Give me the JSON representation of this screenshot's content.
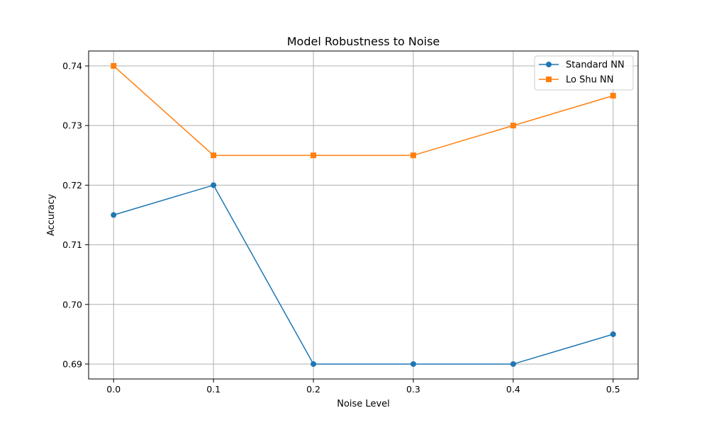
{
  "chart_data": {
    "type": "line",
    "title": "Model Robustness to Noise",
    "xlabel": "Noise Level",
    "ylabel": "Accuracy",
    "x": [
      0.0,
      0.1,
      0.2,
      0.3,
      0.4,
      0.5
    ],
    "xlim": [
      -0.025,
      0.525
    ],
    "ylim": [
      0.6875,
      0.7425
    ],
    "xticks": [
      "0.0",
      "0.1",
      "0.2",
      "0.3",
      "0.4",
      "0.5"
    ],
    "yticks": [
      "0.69",
      "0.70",
      "0.71",
      "0.72",
      "0.73",
      "0.74"
    ],
    "grid": true,
    "legend_position": "top-right",
    "series": [
      {
        "name": "Standard NN",
        "color": "#1f77b4",
        "marker": "circle",
        "values": [
          0.715,
          0.72,
          0.69,
          0.69,
          0.69,
          0.695
        ]
      },
      {
        "name": "Lo Shu NN",
        "color": "#ff7f0e",
        "marker": "square",
        "values": [
          0.74,
          0.725,
          0.725,
          0.725,
          0.73,
          0.735
        ]
      }
    ]
  }
}
